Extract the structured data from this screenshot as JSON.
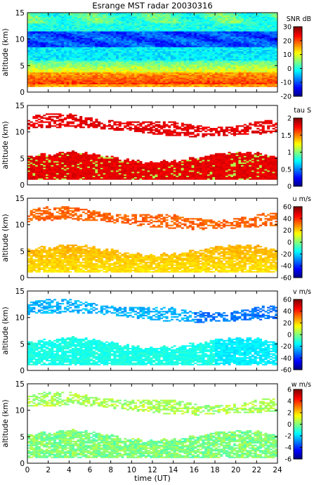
{
  "figure": {
    "title": "Esrange MST radar 20030316",
    "xlabel": "time (UT)"
  },
  "chart_data": [
    {
      "type": "heatmap",
      "ylabel": "altitude (km)",
      "x_range": [
        0,
        24
      ],
      "x_ticks": [
        0,
        2,
        4,
        6,
        8,
        10,
        12,
        14,
        16,
        18,
        20,
        22,
        24
      ],
      "y_range": [
        0,
        15
      ],
      "y_ticks": [
        0,
        5,
        10,
        15
      ],
      "colorbar": {
        "label": "SNR dB",
        "range": [
          -20,
          30
        ],
        "ticks": [
          -20,
          -10,
          0,
          10,
          20,
          30
        ]
      },
      "field": "snr"
    },
    {
      "type": "heatmap",
      "ylabel": "altitude (km)",
      "x_range": [
        0,
        24
      ],
      "x_ticks": [
        0,
        2,
        4,
        6,
        8,
        10,
        12,
        14,
        16,
        18,
        20,
        22,
        24
      ],
      "y_range": [
        0,
        15
      ],
      "y_ticks": [
        0,
        5,
        10,
        15
      ],
      "colorbar": {
        "label": "tau S",
        "range": [
          0,
          2
        ],
        "ticks": [
          0,
          0.5,
          1,
          1.5,
          2
        ]
      },
      "field": "tau"
    },
    {
      "type": "heatmap",
      "ylabel": "altitude (km)",
      "x_range": [
        0,
        24
      ],
      "x_ticks": [
        0,
        2,
        4,
        6,
        8,
        10,
        12,
        14,
        16,
        18,
        20,
        22,
        24
      ],
      "y_range": [
        0,
        15
      ],
      "y_ticks": [
        0,
        5,
        10,
        15
      ],
      "colorbar": {
        "label": "u m/s",
        "range": [
          -60,
          60
        ],
        "ticks": [
          -60,
          -40,
          -20,
          0,
          20,
          40,
          60
        ]
      },
      "field": "u"
    },
    {
      "type": "heatmap",
      "ylabel": "altitude (km)",
      "x_range": [
        0,
        24
      ],
      "x_ticks": [
        0,
        2,
        4,
        6,
        8,
        10,
        12,
        14,
        16,
        18,
        20,
        22,
        24
      ],
      "y_range": [
        0,
        15
      ],
      "y_ticks": [
        0,
        5,
        10,
        15
      ],
      "colorbar": {
        "label": "v m/s",
        "range": [
          -60,
          60
        ],
        "ticks": [
          -60,
          -40,
          -20,
          0,
          20,
          40,
          60
        ]
      },
      "field": "v"
    },
    {
      "type": "heatmap",
      "ylabel": "altitude (km)",
      "x_range": [
        0,
        24
      ],
      "x_ticks": [
        0,
        2,
        4,
        6,
        8,
        10,
        12,
        14,
        16,
        18,
        20,
        22,
        24
      ],
      "y_range": [
        0,
        15
      ],
      "y_ticks": [
        0,
        5,
        10,
        15
      ],
      "colorbar": {
        "label": "w m/s",
        "range": [
          -6,
          6
        ],
        "ticks": [
          -6,
          -4,
          -2,
          0,
          2,
          4,
          6
        ]
      },
      "field": "w"
    }
  ]
}
